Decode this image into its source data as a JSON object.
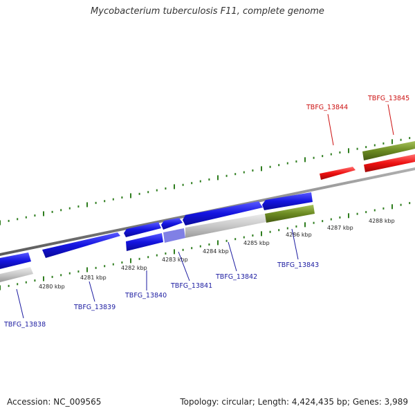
{
  "title": "Mycobacterium tuberculosis F11, complete genome",
  "footer": {
    "accession": "Accession: NC_009565",
    "summary": "Topology: circular; Length: 4,424,435 bp; Genes: 3,989"
  },
  "colors": {
    "background": "#ffffff",
    "backbone": "#7a7a7a",
    "gene_blue": "#1414e0",
    "gene_red": "#ee1010",
    "gene_gray": "#c8c8c8",
    "gene_olive": "#6b8a22",
    "tick": "#2e7d1e",
    "label_blue": "#1a1aa0",
    "label_red": "#cc1010"
  },
  "scale_labels": [
    "4280 kbp",
    "4281 kbp",
    "4282 kbp",
    "4283 kbp",
    "4284 kbp",
    "4285 kbp",
    "4286 kbp",
    "4287 kbp",
    "4288 kbp"
  ],
  "gene_labels": [
    {
      "name": "TBFG_13838",
      "color": "blue"
    },
    {
      "name": "TBFG_13839",
      "color": "blue"
    },
    {
      "name": "TBFG_13840",
      "color": "blue"
    },
    {
      "name": "TBFG_13841",
      "color": "blue"
    },
    {
      "name": "TBFG_13842",
      "color": "blue"
    },
    {
      "name": "TBFG_13843",
      "color": "blue"
    },
    {
      "name": "TBFG_13844",
      "color": "red"
    },
    {
      "name": "TBFG_13845",
      "color": "red"
    }
  ]
}
